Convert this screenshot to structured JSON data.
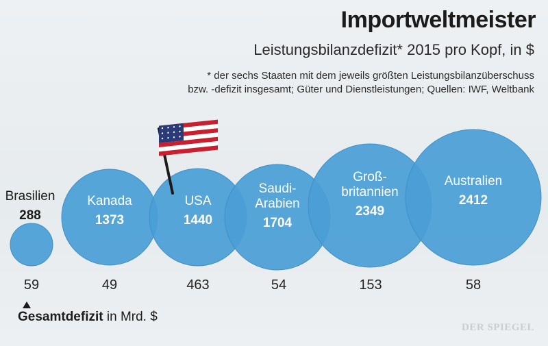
{
  "header": {
    "title": "Importweltmeister",
    "subtitle": "Leistungsbilanzdefizit* 2015 pro Kopf, in $",
    "footnote_line1": "* der sechs Staaten mit dem jeweils größten Leistungsbilanzüberschuss",
    "footnote_line2": "bzw. -defizit insgesamt; Güter und Dienstleistungen; Quellen: IWF, Weltbank"
  },
  "legend": {
    "bold_text": "Gesamtdefizit",
    "rest_text": " in Mrd. $"
  },
  "brand": "DER SPIEGEL",
  "colors": {
    "bubble": "#4a9ed6",
    "bubble_edge": "#3d8fc7",
    "flag_red": "#c8202f",
    "flag_blue": "#2b3a78"
  },
  "icons": {
    "flag": "us-flag-icon",
    "arrow": "triangle-up-icon"
  },
  "chart_data": {
    "type": "bubble",
    "title": "Importweltmeister",
    "subtitle": "Leistungsbilanzdefizit* 2015 pro Kopf, in $",
    "size_metric": "Leistungsbilanzdefizit pro Kopf, in $",
    "secondary_metric": "Gesamtdefizit in Mrd. $",
    "countries": [
      {
        "name_lines": [
          "Brasilien"
        ],
        "per_capita": "288",
        "total_deficit": "59"
      },
      {
        "name_lines": [
          "Kanada"
        ],
        "per_capita": "1373",
        "total_deficit": "49"
      },
      {
        "name_lines": [
          "USA"
        ],
        "per_capita": "1440",
        "total_deficit": "463"
      },
      {
        "name_lines": [
          "Saudi-",
          "Arabien"
        ],
        "per_capita": "1704",
        "total_deficit": "54"
      },
      {
        "name_lines": [
          "Groß-",
          "britannien"
        ],
        "per_capita": "2349",
        "total_deficit": "153"
      },
      {
        "name_lines": [
          "Australien"
        ],
        "per_capita": "2412",
        "total_deficit": "58"
      }
    ]
  }
}
